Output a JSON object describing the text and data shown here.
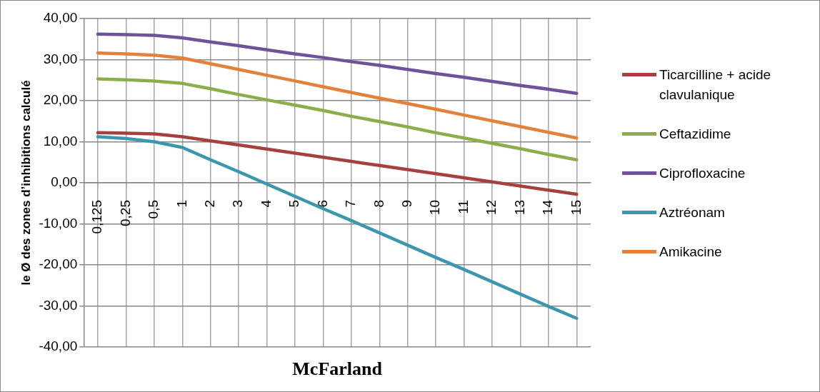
{
  "chart_data": {
    "type": "line",
    "xlabel": "McFarland",
    "ylabel": "le Ø des zones d’inhibitions calculé",
    "categories": [
      "0,125",
      "0,25",
      "0,5",
      "1",
      "2",
      "3",
      "4",
      "5",
      "6",
      "7",
      "8",
      "9",
      "10",
      "11",
      "12",
      "13",
      "14",
      "15"
    ],
    "ylim": [
      -40,
      40
    ],
    "yticks": [
      {
        "value": -40,
        "label": "-40,00"
      },
      {
        "value": -30,
        "label": "-30,00"
      },
      {
        "value": -20,
        "label": "-20,00"
      },
      {
        "value": -10,
        "label": "-10,00"
      },
      {
        "value": 0,
        "label": "0,00"
      },
      {
        "value": 10,
        "label": "10,00"
      },
      {
        "value": 20,
        "label": "20,00"
      },
      {
        "value": 30,
        "label": "30,00"
      },
      {
        "value": 40,
        "label": "40,00"
      }
    ],
    "grid": true,
    "legend": "right",
    "marker": "none",
    "line_style": "solid",
    "series": [
      {
        "name": "Ticarcilline + acide clavulanique",
        "color": "#a5403d",
        "values": [
          12.2,
          12.1,
          11.9,
          11.2,
          10.2,
          9.2,
          8.2,
          7.2,
          6.2,
          5.2,
          4.2,
          3.2,
          2.2,
          1.2,
          0.2,
          -0.8,
          -1.8,
          -2.8
        ]
      },
      {
        "name": "Ceftazidime",
        "color": "#8aae4a",
        "values": [
          25.3,
          25.1,
          24.8,
          24.2,
          22.9,
          21.5,
          20.2,
          18.9,
          17.6,
          16.2,
          14.9,
          13.6,
          12.2,
          10.9,
          9.6,
          8.3,
          6.9,
          5.6
        ]
      },
      {
        "name": "Ciprofloxacine",
        "color": "#6e529a",
        "values": [
          36.2,
          36.1,
          35.9,
          35.3,
          34.3,
          33.4,
          32.4,
          31.4,
          30.5,
          29.5,
          28.6,
          27.6,
          26.6,
          25.7,
          24.7,
          23.7,
          22.8,
          21.8
        ]
      },
      {
        "name": "Aztréonam",
        "color": "#3b96b0",
        "values": [
          11.2,
          10.8,
          10.0,
          8.6,
          5.6,
          2.7,
          -0.3,
          -3.3,
          -6.3,
          -9.2,
          -12.2,
          -15.2,
          -18.2,
          -21.1,
          -24.1,
          -27.1,
          -30.1,
          -33.0
        ]
      },
      {
        "name": "Amikacine",
        "color": "#e3813a",
        "values": [
          31.6,
          31.4,
          31.1,
          30.4,
          29.0,
          27.6,
          26.2,
          24.8,
          23.4,
          22.0,
          20.6,
          19.3,
          17.9,
          16.5,
          15.1,
          13.7,
          12.3,
          10.9
        ]
      }
    ]
  }
}
